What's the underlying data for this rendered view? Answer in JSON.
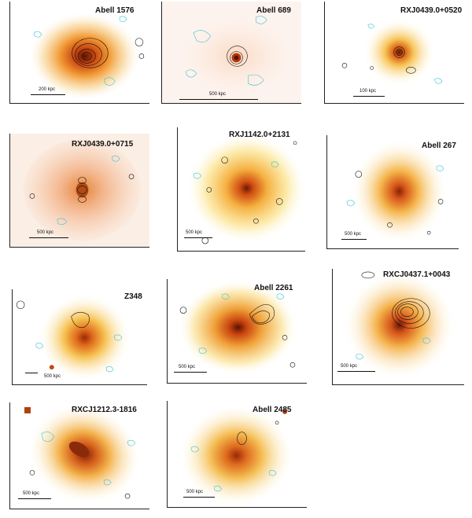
{
  "panels": [
    {
      "id": "p1",
      "title": "Abell 1576",
      "scale_label": "200 kpc"
    },
    {
      "id": "p2",
      "title": "Abell 689",
      "scale_label": "500 kpc"
    },
    {
      "id": "p3",
      "title": "RXJ0439.0+0520",
      "scale_label": "100 kpc"
    },
    {
      "id": "p4",
      "title": "RXJ0439.0+0715",
      "scale_label": "500 kpc"
    },
    {
      "id": "p5",
      "title": "RXJ1142.0+2131",
      "scale_label": "500 kpc"
    },
    {
      "id": "p6",
      "title": "Abell 267",
      "scale_label": "500 kpc"
    },
    {
      "id": "p7",
      "title": "Z348",
      "scale_label": "500 kpc"
    },
    {
      "id": "p8",
      "title": "Abell 2261",
      "scale_label": "500 kpc"
    },
    {
      "id": "p9",
      "title": "RXCJ0437.1+0043",
      "scale_label": "500 kpc"
    },
    {
      "id": "p10",
      "title": "RXCJ1212.3-1816",
      "scale_label": "500 kpc"
    },
    {
      "id": "p11",
      "title": "Abell 2485",
      "scale_label": "500 kpc"
    }
  ],
  "colors": {
    "xray_core": "#7a1a05",
    "xray_mid": "#e2621a",
    "xray_outer": "#f7c860",
    "xray_halo": "#fbeec8",
    "radio_contour": "#111111",
    "negative_contour": "#39c3d9"
  }
}
